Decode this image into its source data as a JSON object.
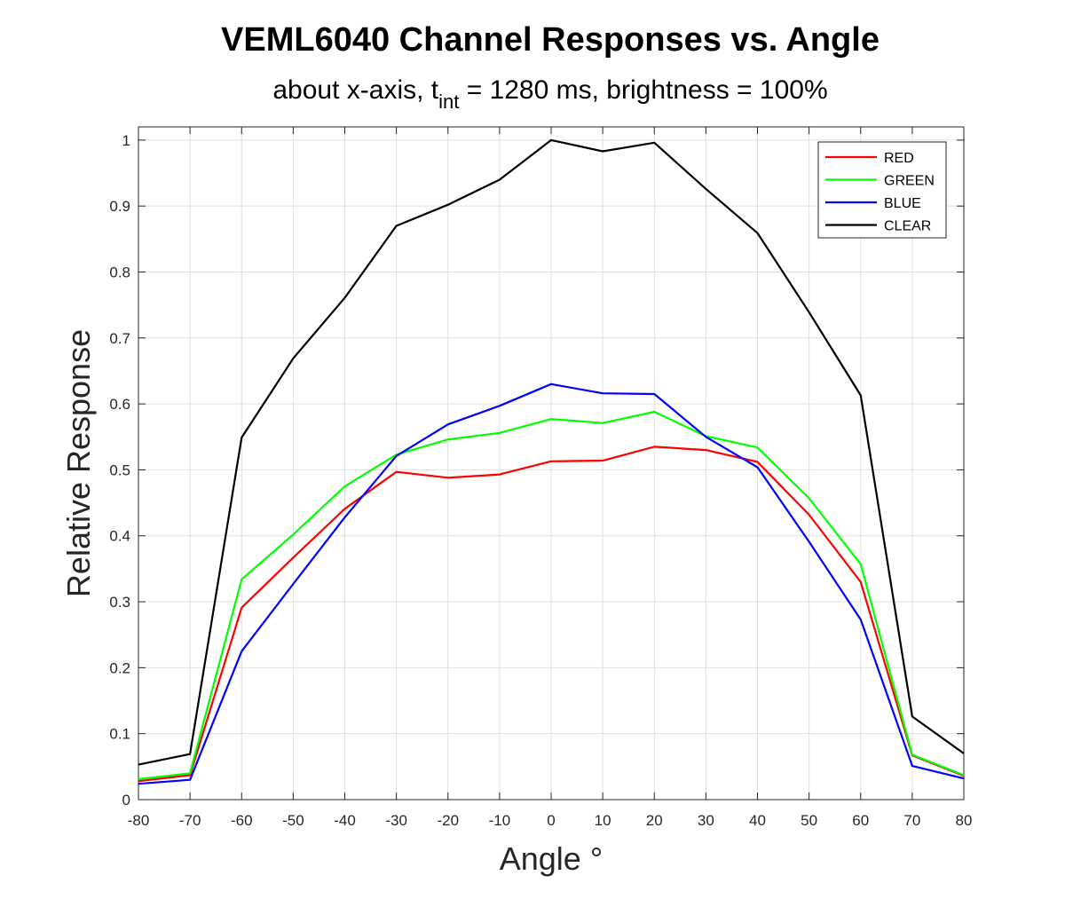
{
  "chart_data": {
    "type": "line",
    "title": "VEML6040 Channel Responses vs. Angle",
    "subtitle": {
      "prefix": "about x-axis, t",
      "subscript": "int",
      "suffix": " = 1280 ms, brightness = 100%"
    },
    "xlabel": "Angle °",
    "ylabel": "Relative Response",
    "xlim": [
      -80,
      80
    ],
    "ylim": [
      0,
      1.02
    ],
    "xticks": [
      -80,
      -70,
      -60,
      -50,
      -40,
      -30,
      -20,
      -10,
      0,
      10,
      20,
      30,
      40,
      50,
      60,
      70,
      80
    ],
    "yticks": [
      0,
      0.1,
      0.2,
      0.3,
      0.4,
      0.5,
      0.6,
      0.7,
      0.8,
      0.9,
      1
    ],
    "ytick_labels": [
      "0",
      "0.1",
      "0.2",
      "0.3",
      "0.4",
      "0.5",
      "0.6",
      "0.7",
      "0.8",
      "0.9",
      "1"
    ],
    "grid": true,
    "legend_position": "top-right",
    "x": [
      -80,
      -70,
      -60,
      -50,
      -40,
      -30,
      -20,
      -10,
      0,
      10,
      20,
      30,
      40,
      50,
      60,
      70,
      80
    ],
    "series": [
      {
        "name": "RED",
        "color": "#ff0000",
        "values": [
          0.028,
          0.037,
          0.291,
          0.367,
          0.441,
          0.497,
          0.488,
          0.493,
          0.513,
          0.514,
          0.535,
          0.53,
          0.512,
          0.432,
          0.33,
          0.067,
          0.036
        ]
      },
      {
        "name": "GREEN",
        "color": "#00ff00",
        "values": [
          0.031,
          0.04,
          0.334,
          0.402,
          0.475,
          0.523,
          0.546,
          0.556,
          0.577,
          0.571,
          0.588,
          0.551,
          0.534,
          0.457,
          0.357,
          0.068,
          0.037
        ]
      },
      {
        "name": "BLUE",
        "color": "#0000ff",
        "values": [
          0.024,
          0.03,
          0.225,
          0.327,
          0.428,
          0.521,
          0.569,
          0.597,
          0.63,
          0.616,
          0.615,
          0.55,
          0.504,
          0.391,
          0.273,
          0.051,
          0.032
        ]
      },
      {
        "name": "CLEAR",
        "color": "#000000",
        "values": [
          0.053,
          0.069,
          0.549,
          0.669,
          0.761,
          0.87,
          0.902,
          0.94,
          1.0,
          0.983,
          0.996,
          0.926,
          0.859,
          0.739,
          0.613,
          0.126,
          0.07
        ]
      }
    ]
  }
}
